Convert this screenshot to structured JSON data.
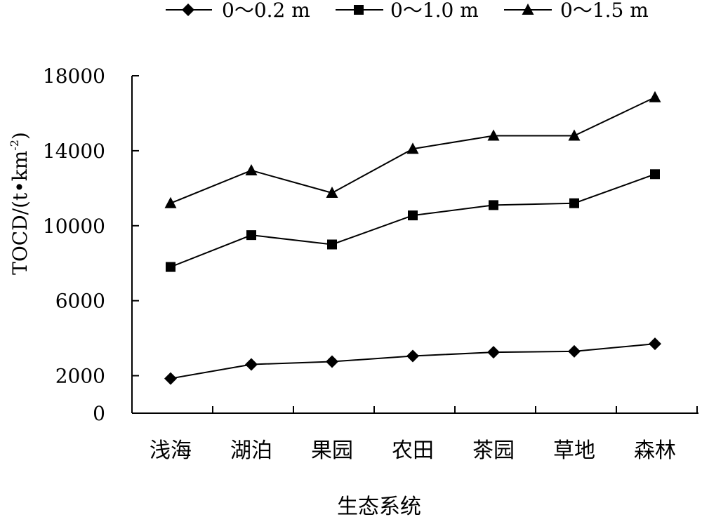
{
  "chart_data": {
    "type": "line",
    "title": "",
    "xlabel": "生态系统",
    "ylabel_main": "TOCD/(t•km",
    "ylabel_sup": "-2",
    "ylabel_close": ")",
    "categories": [
      "浅海",
      "湖泊",
      "果园",
      "农田",
      "茶园",
      "草地",
      "森林"
    ],
    "yticks": [
      "0",
      "2000",
      "6000",
      "10000",
      "14000",
      "18000"
    ],
    "ylim": [
      0,
      18000
    ],
    "legend_position": "top",
    "grid": false,
    "series": [
      {
        "name": "0～0.2 m",
        "marker": "diamond",
        "values": [
          1850,
          2600,
          2750,
          3050,
          3250,
          3300,
          3700
        ]
      },
      {
        "name": "0～1.0 m",
        "marker": "square",
        "values": [
          7800,
          9500,
          9000,
          10550,
          11100,
          11200,
          12750
        ]
      },
      {
        "name": "0～1.5 m",
        "marker": "triangle",
        "values": [
          11200,
          12950,
          11750,
          14100,
          14800,
          14800,
          16850
        ]
      }
    ]
  }
}
